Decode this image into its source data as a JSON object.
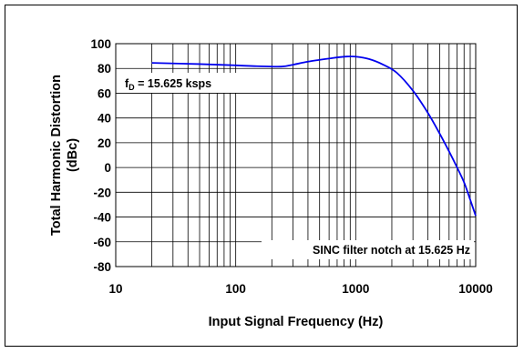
{
  "chart_data": {
    "type": "line",
    "title": "",
    "xlabel": "Input Signal Frequency (Hz)",
    "ylabel_lines": [
      "Total Harmonic Distortion",
      "(dBc)"
    ],
    "x_scale": "log",
    "xlim": [
      10,
      10000
    ],
    "ylim": [
      -80,
      100
    ],
    "x_ticks": [
      10,
      100,
      1000,
      10000
    ],
    "x_tick_labels": [
      "10",
      "100",
      "1000",
      "10000"
    ],
    "y_ticks": [
      100,
      80,
      60,
      40,
      20,
      0,
      -20,
      -40,
      -60,
      -80
    ],
    "y_tick_labels": [
      "100",
      "80",
      "60",
      "40",
      "20",
      "0",
      "-20",
      "-40",
      "-60",
      "-80"
    ],
    "grid": true,
    "line_color": "#0000ee",
    "series": [
      {
        "x": [
          20,
          50,
          100,
          150,
          240,
          300,
          400,
          600,
          800,
          1000,
          1300,
          1700,
          2200,
          3000,
          4000,
          5000,
          6000,
          7000,
          8000,
          9000,
          10000
        ],
        "y": [
          84.5,
          83.5,
          82.5,
          81.8,
          81.5,
          83,
          85.5,
          88,
          89.5,
          89.5,
          87.5,
          83,
          76.5,
          62,
          44,
          27.5,
          13,
          0,
          -12,
          -26,
          -39
        ]
      }
    ],
    "annotations": [
      {
        "id": "fd",
        "parts": [
          {
            "text": "f"
          },
          {
            "text": "D",
            "sub": true
          },
          {
            "text": " = 15.625 ksps"
          }
        ],
        "position": "upper-left"
      },
      {
        "id": "sinc",
        "text": "SINC filter notch at 15.625 Hz",
        "position": "lower-right"
      }
    ]
  }
}
